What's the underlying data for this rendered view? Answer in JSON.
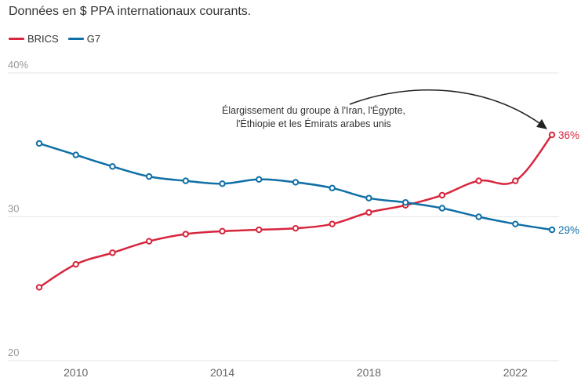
{
  "chart_data": {
    "type": "line",
    "title": "",
    "subtitle": "Données en $ PPA internationaux courants.",
    "xlabel": "",
    "ylabel": "",
    "x": [
      2009,
      2010,
      2011,
      2012,
      2013,
      2014,
      2015,
      2016,
      2017,
      2018,
      2019,
      2020,
      2021,
      2022,
      2023
    ],
    "series": [
      {
        "name": "BRICS",
        "color": "#d7263d",
        "values": [
          25.1,
          26.7,
          27.5,
          28.3,
          28.8,
          29.0,
          29.1,
          29.2,
          29.5,
          30.3,
          30.8,
          31.5,
          32.5,
          32.5,
          35.7
        ],
        "end_label": "36%"
      },
      {
        "name": "G7",
        "color": "#0f6fa6",
        "values": [
          35.1,
          34.3,
          33.5,
          32.8,
          32.5,
          32.3,
          32.6,
          32.4,
          32.0,
          31.3,
          31.0,
          30.6,
          30.0,
          29.5,
          29.1
        ],
        "end_label": "29%"
      }
    ],
    "ylim": [
      20,
      40
    ],
    "yticks": [
      {
        "value": 40,
        "label": "40%"
      },
      {
        "value": 30,
        "label": "30"
      },
      {
        "value": 20,
        "label": "20"
      }
    ],
    "xticks": [
      {
        "value": 2010,
        "label": "2010"
      },
      {
        "value": 2014,
        "label": "2014"
      },
      {
        "value": 2018,
        "label": "2018"
      },
      {
        "value": 2022,
        "label": "2022"
      }
    ],
    "xlim": [
      2009,
      2023
    ],
    "grid": true,
    "legend_placement": "top-left",
    "annotation": {
      "lines": [
        "Élargissement du groupe à l'Iran, l'Égypte,",
        "l'Éthiopie et les Émirats arabes unis"
      ],
      "target_x": 2023,
      "target_series": "BRICS"
    }
  }
}
